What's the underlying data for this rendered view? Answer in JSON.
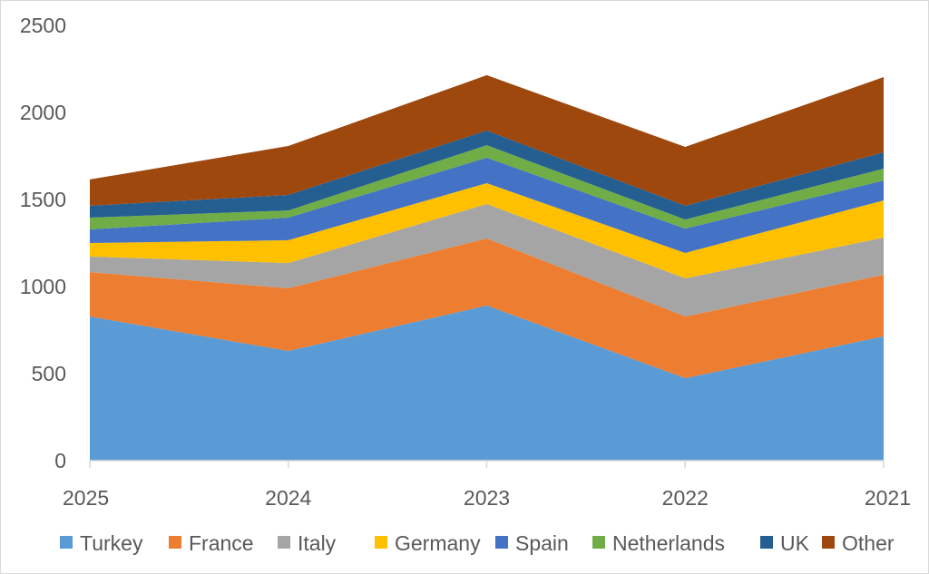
{
  "chart_data": {
    "type": "area",
    "stacked": true,
    "categories": [
      "2025",
      "2024",
      "2023",
      "2022",
      "2021"
    ],
    "ylim": [
      0,
      2500
    ],
    "yticks": [
      0,
      500,
      1000,
      1500,
      2000,
      2500
    ],
    "grid": false,
    "legend": "bottom",
    "series": [
      {
        "name": "Turkey",
        "color": "#5B9BD5",
        "values": [
          828,
          630,
          891,
          474,
          714
        ]
      },
      {
        "name": "France",
        "color": "#ED7D31",
        "values": [
          255,
          360,
          385,
          354,
          354
        ]
      },
      {
        "name": "Italy",
        "color": "#A5A5A5",
        "values": [
          89,
          145,
          198,
          219,
          213
        ]
      },
      {
        "name": "Germany",
        "color": "#FFC000",
        "values": [
          78,
          131,
          120,
          146,
          214
        ]
      },
      {
        "name": "Spain",
        "color": "#4472C4",
        "values": [
          78,
          130,
          146,
          140,
          114
        ]
      },
      {
        "name": "Netherlands",
        "color": "#70AD47",
        "values": [
          68,
          41,
          72,
          52,
          68
        ]
      },
      {
        "name": "UK",
        "color": "#255E91",
        "values": [
          68,
          89,
          84,
          79,
          94
        ]
      },
      {
        "name": "Other",
        "color": "#9E480E",
        "values": [
          151,
          281,
          318,
          338,
          432
        ]
      }
    ]
  }
}
